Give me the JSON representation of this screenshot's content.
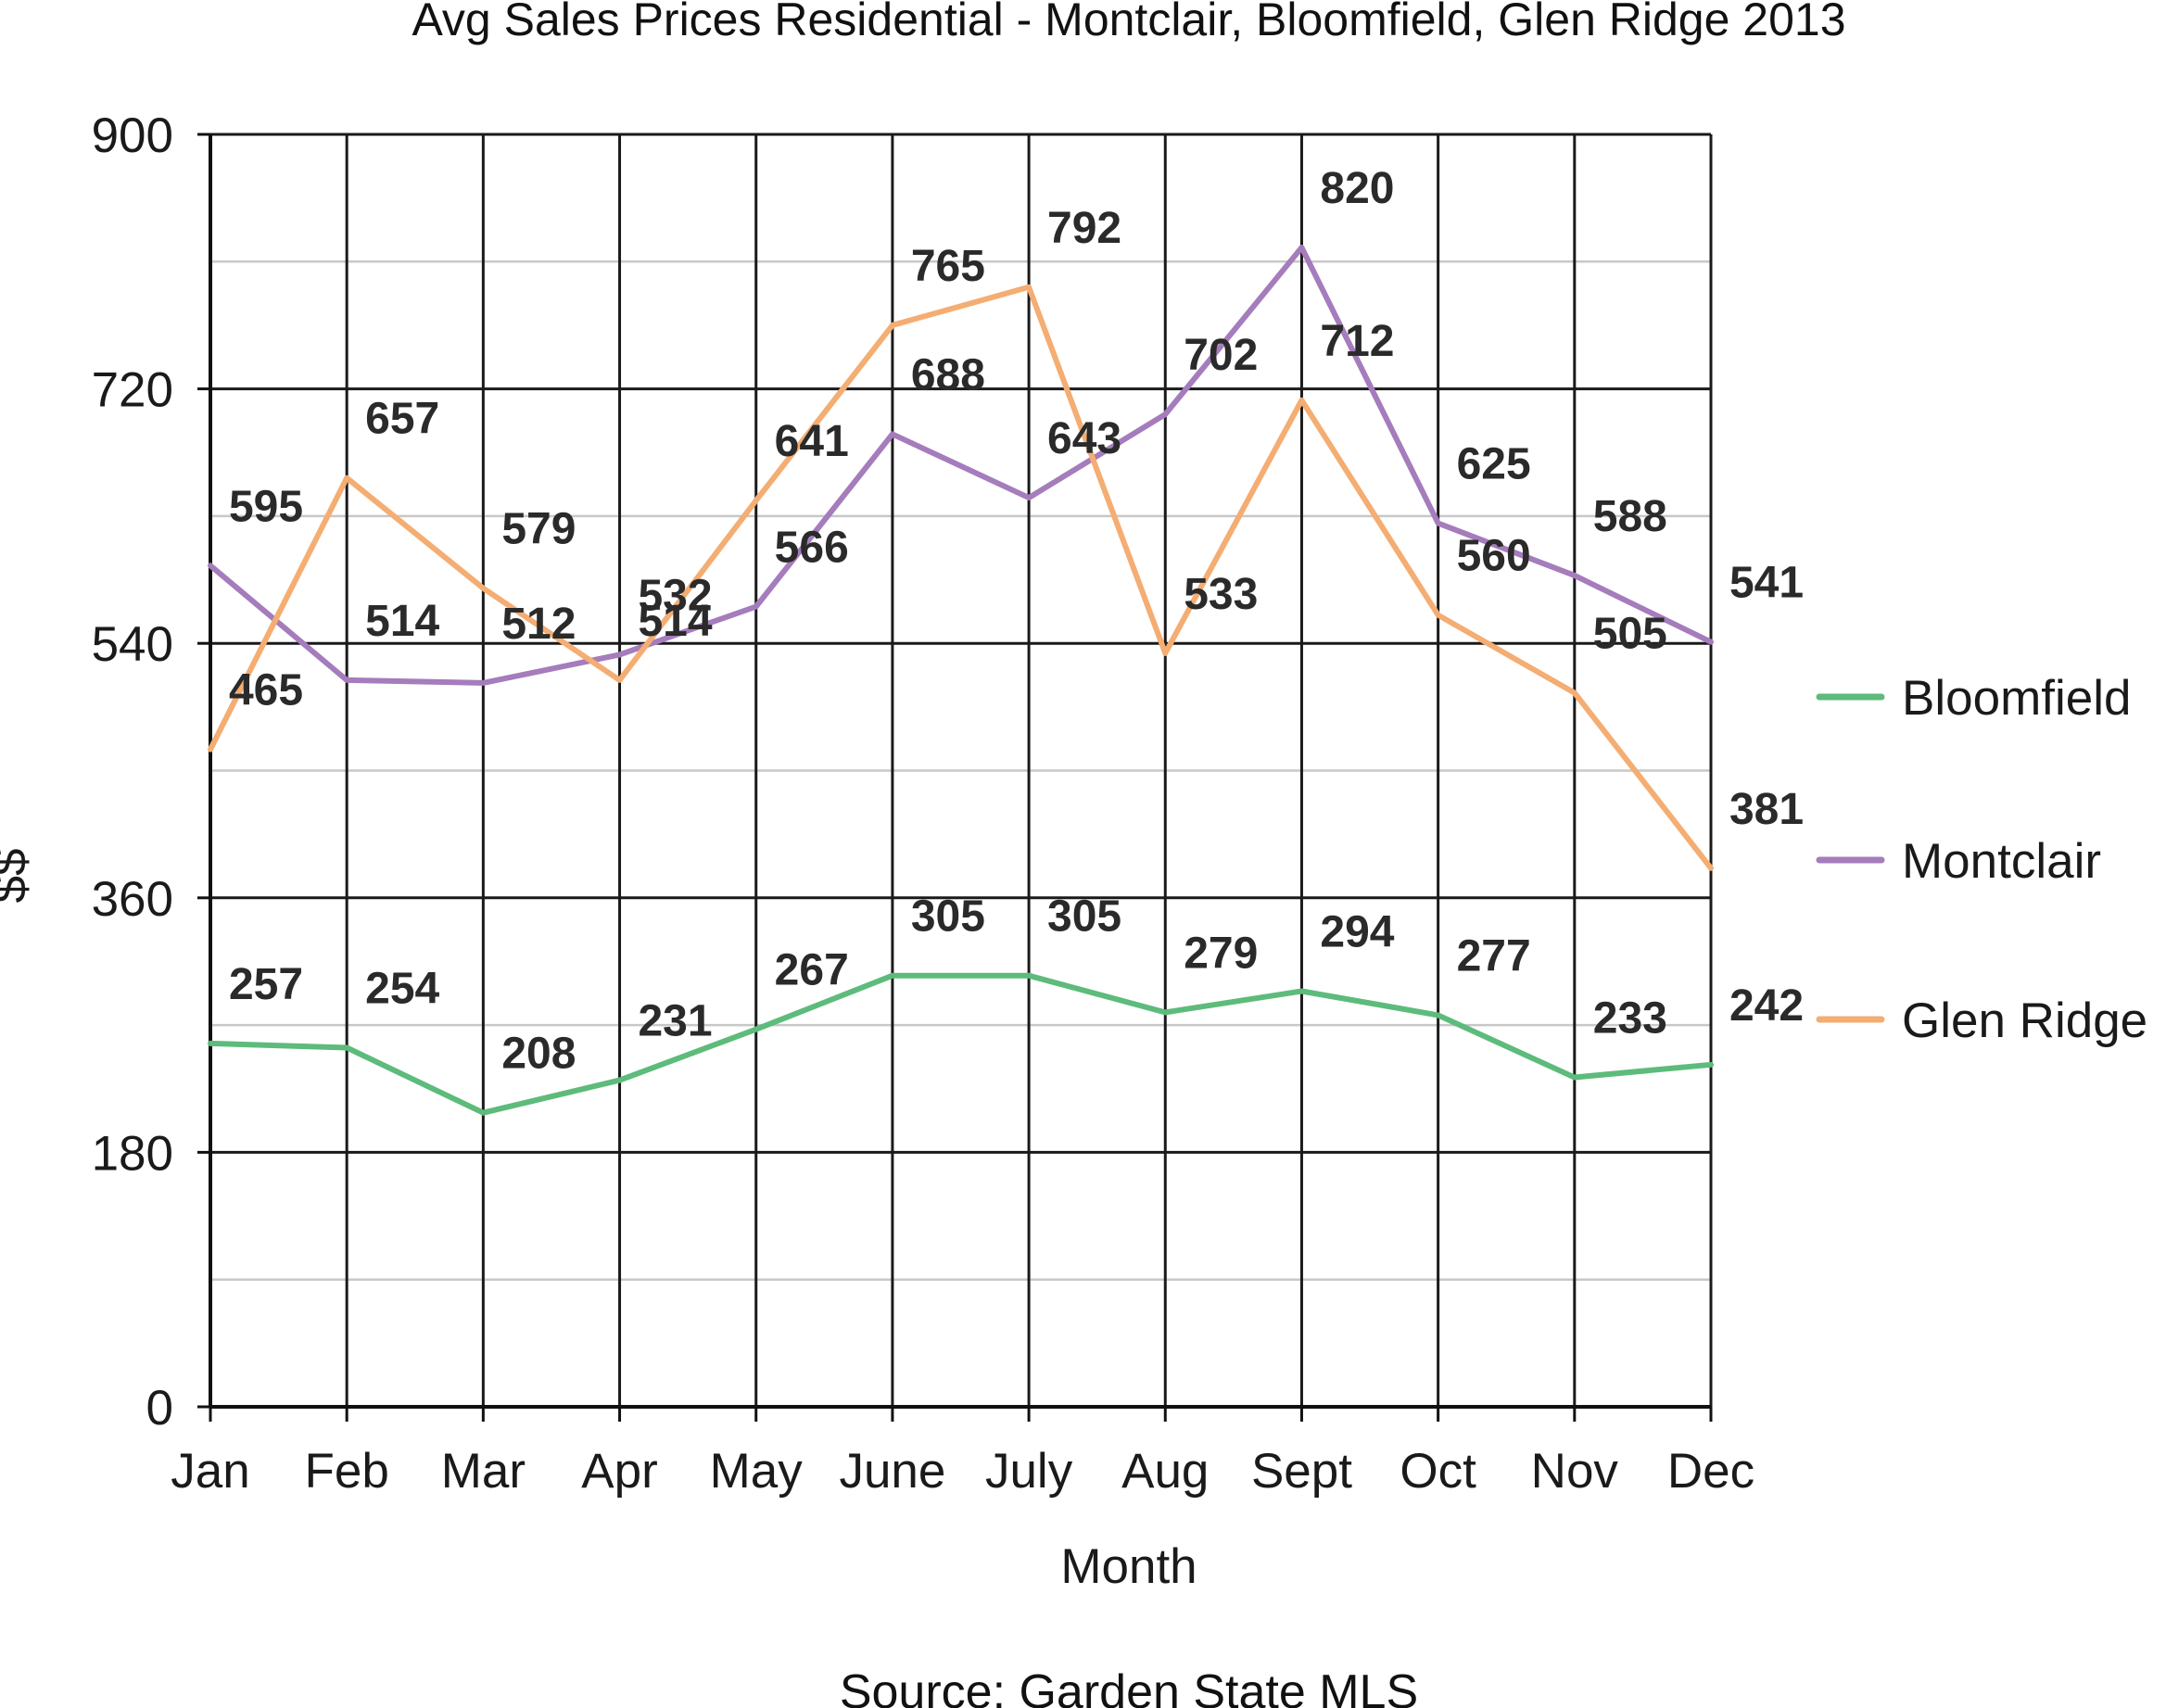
{
  "chart_data": {
    "type": "line",
    "title": "Avg Sales Prices Residential - Montclair, Bloomfield, Glen Ridge 2013",
    "xlabel": "Month",
    "ylabel": "$$",
    "source": "Source: Garden State MLS",
    "categories": [
      "Jan",
      "Feb",
      "Mar",
      "Apr",
      "May",
      "June",
      "July",
      "Aug",
      "Sept",
      "Oct",
      "Nov",
      "Dec"
    ],
    "ylim": [
      0,
      900
    ],
    "yticks": [
      0,
      180,
      360,
      540,
      720,
      900
    ],
    "grid": true,
    "legend_position": "right",
    "series": [
      {
        "name": "Bloomfield",
        "color": "#5dbb7b",
        "values": [
          257,
          254,
          208,
          231,
          267,
          305,
          305,
          279,
          294,
          277,
          233,
          242
        ]
      },
      {
        "name": "Montclair",
        "color": "#a57cbc",
        "values": [
          595,
          514,
          512,
          532,
          566,
          688,
          643,
          702,
          820,
          625,
          588,
          541
        ]
      },
      {
        "name": "Glen Ridge",
        "color": "#f4ad72",
        "values": [
          465,
          657,
          579,
          514,
          641,
          765,
          792,
          533,
          712,
          560,
          505,
          381
        ]
      }
    ]
  }
}
